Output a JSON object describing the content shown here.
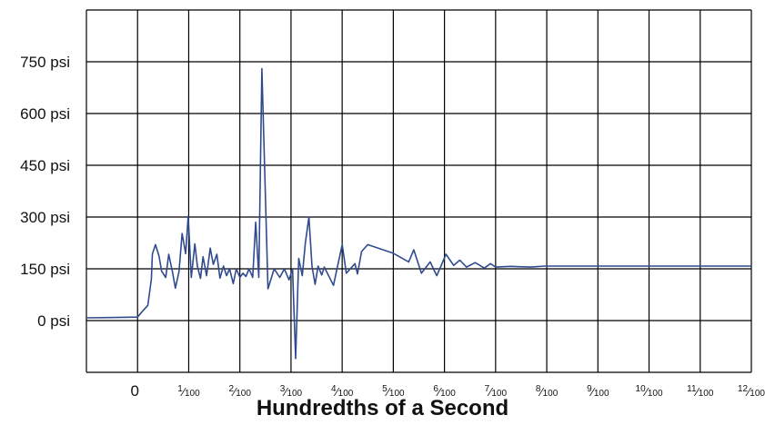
{
  "chart_data": {
    "type": "line",
    "xlabel": "Hundredths of a Second",
    "ylabel": "",
    "y_unit": "psi",
    "xlim": [
      -1,
      12
    ],
    "ylim": [
      -150,
      900
    ],
    "y_ticks": [
      0,
      150,
      300,
      450,
      600,
      750
    ],
    "y_tick_labels": [
      "0 psi",
      "150 psi",
      "300 psi",
      "450 psi",
      "600 psi",
      "750 psi"
    ],
    "x_tick_labels": [
      {
        "value": 0,
        "label": "0"
      },
      {
        "value": 1,
        "num": "1",
        "den": "100"
      },
      {
        "value": 2,
        "num": "2",
        "den": "100"
      },
      {
        "value": 3,
        "num": "3",
        "den": "100"
      },
      {
        "value": 4,
        "num": "4",
        "den": "100"
      },
      {
        "value": 5,
        "num": "5",
        "den": "100"
      },
      {
        "value": 6,
        "num": "6",
        "den": "100"
      },
      {
        "value": 7,
        "num": "7",
        "den": "100"
      },
      {
        "value": 8,
        "num": "8",
        "den": "100"
      },
      {
        "value": 9,
        "num": "9",
        "den": "100"
      },
      {
        "value": 10,
        "num": "10",
        "den": "100"
      },
      {
        "value": 11,
        "num": "11",
        "den": "100"
      },
      {
        "value": 12,
        "num": "12",
        "den": "100"
      }
    ],
    "grid": true,
    "line_color": "#2f4a8f",
    "series": [
      {
        "x": [
          -1,
          0,
          0.1,
          0.2,
          0.27,
          0.29,
          0.35,
          0.42,
          0.47,
          0.55,
          0.61,
          0.68,
          0.74,
          0.81,
          0.87,
          0.94,
          0.99,
          1.05,
          1.12,
          1.17,
          1.23,
          1.28,
          1.35,
          1.42,
          1.48,
          1.55,
          1.61,
          1.68,
          1.74,
          1.8,
          1.87,
          1.93,
          2.0,
          2.06,
          2.12,
          2.18,
          2.25,
          2.31,
          2.37,
          2.43,
          2.55,
          2.67,
          2.78,
          2.87,
          2.96,
          3.03,
          3.09,
          3.15,
          3.22,
          3.28,
          3.35,
          3.41,
          3.47,
          3.53,
          3.6,
          3.65,
          3.83,
          4.0,
          4.08,
          4.25,
          4.3,
          4.38,
          4.5,
          5.0,
          5.3,
          5.4,
          5.55,
          5.72,
          5.85,
          6.03,
          6.18,
          6.3,
          6.43,
          6.6,
          6.78,
          6.9,
          7.0,
          7.3,
          7.45,
          7.7,
          7.95,
          8.1,
          8.3,
          8.6,
          9.0,
          12.0
        ],
        "values": [
          8,
          10,
          28,
          44,
          120,
          193,
          220,
          187,
          143,
          125,
          192,
          142,
          94,
          142,
          252,
          194,
          302,
          125,
          222,
          158,
          122,
          185,
          130,
          210,
          163,
          192,
          123,
          158,
          130,
          150,
          107,
          150,
          125,
          137,
          128,
          150,
          125,
          285,
          125,
          730,
          92,
          150,
          125,
          150,
          118,
          150,
          -110,
          180,
          130,
          225,
          300,
          157,
          105,
          158,
          132,
          155,
          102,
          220,
          137,
          165,
          135,
          200,
          220,
          195,
          170,
          205,
          137,
          170,
          130,
          192,
          160,
          175,
          155,
          168,
          152,
          165,
          155,
          157,
          156,
          155,
          158,
          158,
          158,
          158,
          158,
          158
        ]
      }
    ]
  }
}
